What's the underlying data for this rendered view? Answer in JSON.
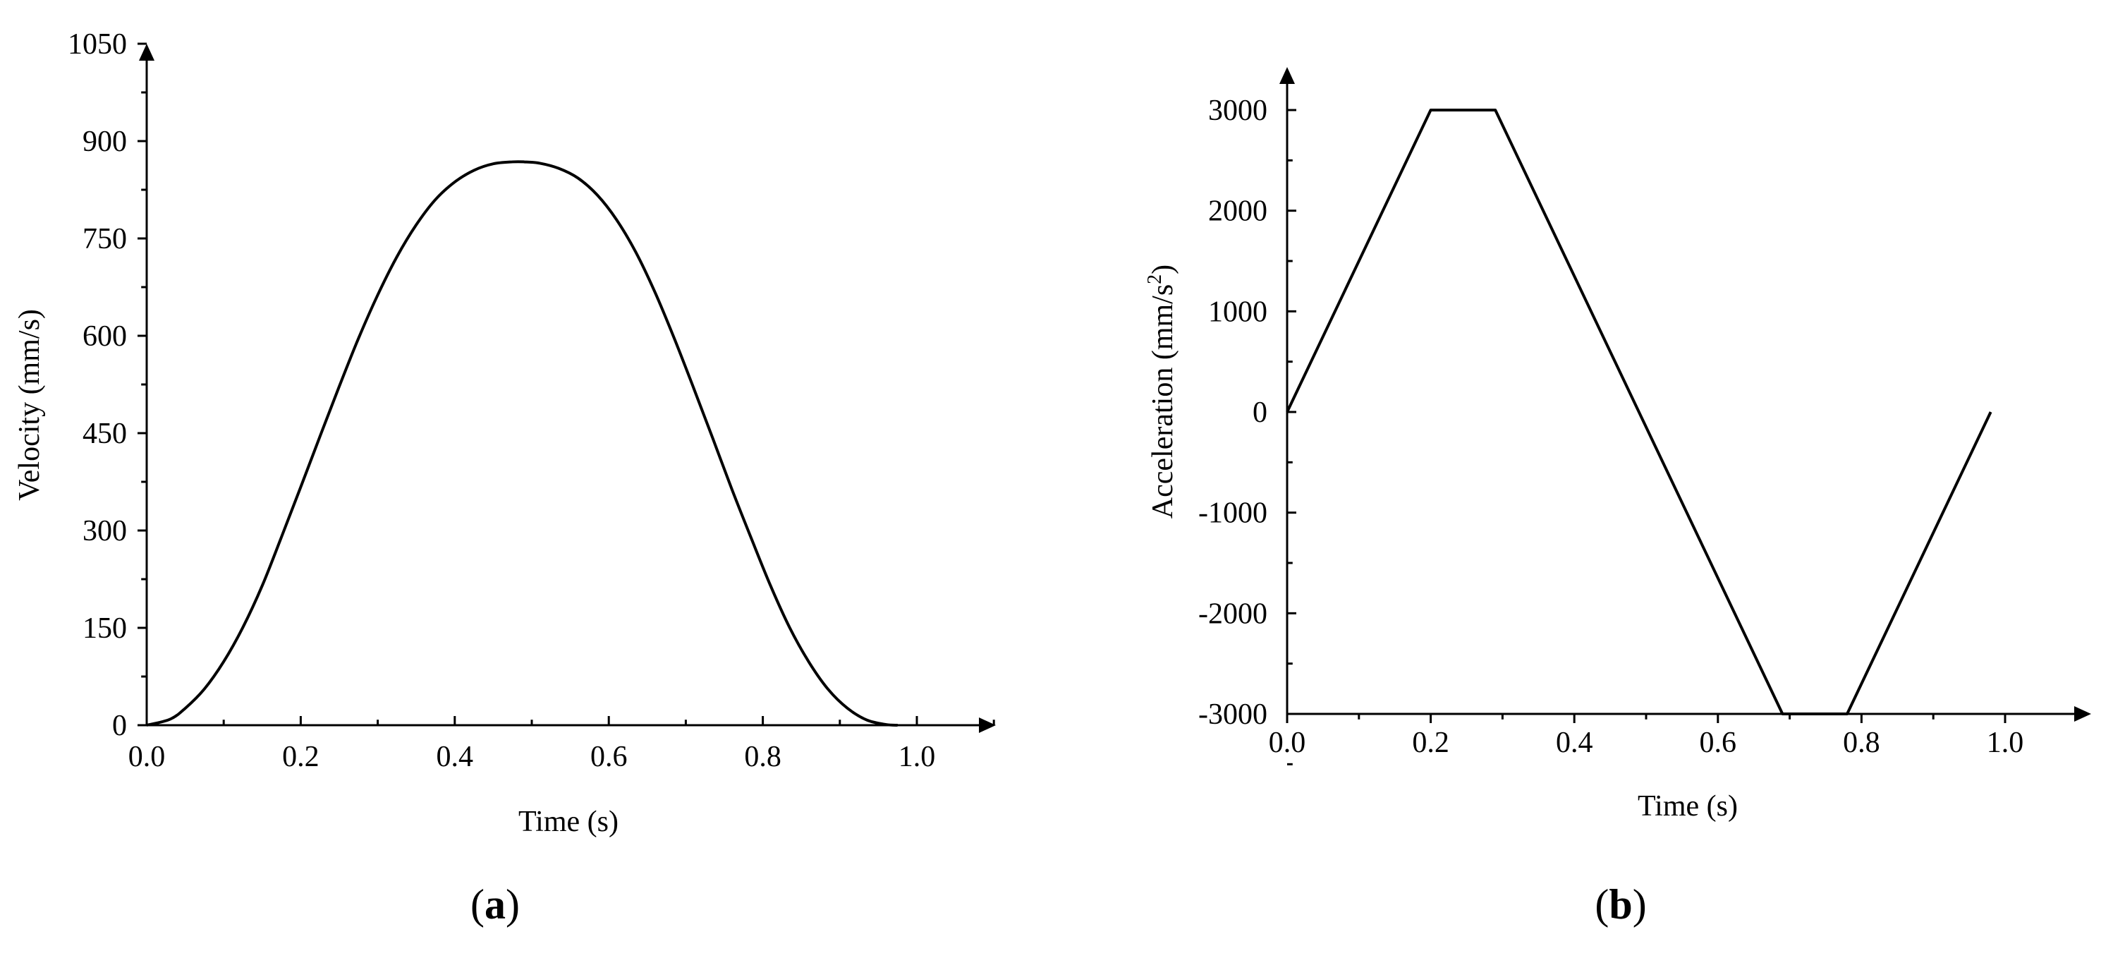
{
  "chart_data": [
    {
      "type": "line",
      "panel_label": "a",
      "xlabel": "Time (s)",
      "ylabel": "Velocity (mm/s)",
      "xlim": [
        0.0,
        1.12
      ],
      "ylim": [
        0,
        1050
      ],
      "x_ticks": [
        0.0,
        0.2,
        0.4,
        0.6,
        0.8,
        1.0
      ],
      "x_tick_labels": [
        "0.0",
        "0.2",
        "0.4",
        "0.6",
        "0.8",
        "1.0"
      ],
      "y_ticks": [
        0,
        150,
        300,
        450,
        600,
        750,
        900,
        1050
      ],
      "y_tick_labels": [
        "0",
        "150",
        "300",
        "450",
        "600",
        "750",
        "900",
        "1050"
      ],
      "grid": false,
      "legend": "none",
      "series": [
        {
          "x": [
            0.0,
            0.03,
            0.05,
            0.075,
            0.1,
            0.125,
            0.15,
            0.175,
            0.2,
            0.225,
            0.25,
            0.275,
            0.3,
            0.325,
            0.35,
            0.375,
            0.4,
            0.425,
            0.45,
            0.475,
            0.49,
            0.51,
            0.535,
            0.56,
            0.585,
            0.61,
            0.635,
            0.66,
            0.685,
            0.71,
            0.735,
            0.76,
            0.785,
            0.81,
            0.835,
            0.86,
            0.885,
            0.91,
            0.935,
            0.96,
            0.975
          ],
          "y": [
            0,
            9,
            26,
            56,
            98,
            151,
            215,
            290,
            367,
            445,
            522,
            596,
            663,
            722,
            771,
            810,
            837,
            855,
            865,
            868,
            868,
            866,
            858,
            843,
            817,
            779,
            729,
            667,
            596,
            520,
            442,
            363,
            288,
            215,
            150,
            97,
            55,
            26,
            8,
            1,
            0
          ]
        }
      ]
    },
    {
      "type": "line",
      "panel_label": "b",
      "xlabel": "Time (s)",
      "ylabel_main": "Acceleration (mm/s",
      "ylabel_sup": "2",
      "ylabel_end": ")",
      "xlim": [
        0.0,
        1.12
      ],
      "ylim": [
        -3500,
        3500
      ],
      "x_ticks": [
        0.0,
        0.2,
        0.4,
        0.6,
        0.8,
        1.0
      ],
      "x_tick_labels": [
        "0.0",
        "0.2",
        "0.4",
        "0.6",
        "0.8",
        "1.0"
      ],
      "y_ticks": [
        3000,
        2000,
        1000,
        0,
        -1000,
        -2000,
        -3000
      ],
      "y_tick_labels": [
        "3000",
        "2000",
        "1000",
        "0",
        "-1000",
        "-2000",
        "-3000"
      ],
      "grid": false,
      "legend": "none",
      "series": [
        {
          "x": [
            0.0,
            0.2,
            0.29,
            0.69,
            0.78,
            0.98
          ],
          "y": [
            0,
            3000,
            3000,
            -3000,
            -3000,
            0
          ]
        }
      ]
    }
  ]
}
